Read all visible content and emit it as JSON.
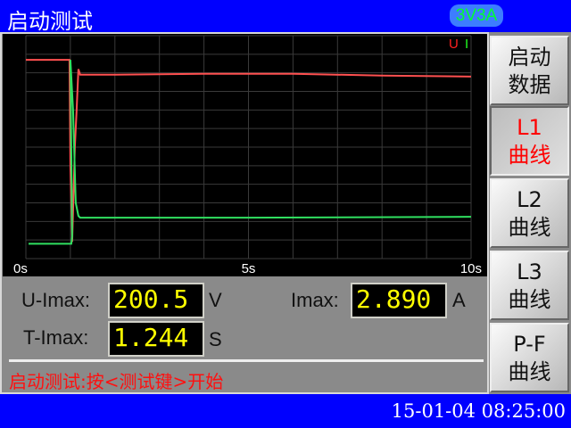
{
  "header": {
    "title": "启动测试",
    "badge": "3V3A"
  },
  "chart_data": {
    "type": "line",
    "x_ticks": [
      "0s",
      "5s",
      "10s"
    ],
    "xlim": [
      0,
      10
    ],
    "ylim": [
      0,
      12
    ],
    "grid": true,
    "legend": [
      {
        "name": "U",
        "color": "#ff2020"
      },
      {
        "name": "I",
        "color": "#20ff20"
      }
    ],
    "series": [
      {
        "name": "U",
        "color": "#ff5050",
        "points": [
          [
            0,
            10.7
          ],
          [
            0.98,
            10.7
          ],
          [
            1.0,
            5
          ],
          [
            1.04,
            0.9
          ],
          [
            1.1,
            6
          ],
          [
            1.14,
            8
          ],
          [
            1.18,
            10.2
          ],
          [
            1.22,
            9.9
          ],
          [
            2,
            9.9
          ],
          [
            4,
            9.95
          ],
          [
            6,
            9.95
          ],
          [
            8,
            9.85
          ],
          [
            10,
            9.8
          ]
        ]
      },
      {
        "name": "I",
        "color": "#30e060",
        "points": [
          [
            0.06,
            0.8
          ],
          [
            1.02,
            0.8
          ],
          [
            1.04,
            1.2
          ],
          [
            1.0,
            10.7
          ],
          [
            1.06,
            8
          ],
          [
            1.12,
            3
          ],
          [
            1.18,
            2.3
          ],
          [
            1.22,
            2.2
          ],
          [
            5,
            2.2
          ],
          [
            10,
            2.25
          ]
        ]
      }
    ]
  },
  "readings": {
    "u_label": "U-Imax:",
    "u_value": "200.5",
    "u_unit": "V",
    "i_label": "Imax:",
    "i_value": "2.890",
    "i_unit": "A",
    "t_label": "T-Imax:",
    "t_value": "1.244",
    "t_unit": "S"
  },
  "status": "启动测试:按<测试键>开始",
  "buttons": [
    {
      "l1": "启动",
      "l2": "数据"
    },
    {
      "l1": "L1",
      "l2": "曲线"
    },
    {
      "l1": "L2",
      "l2": "曲线"
    },
    {
      "l1": "L3",
      "l2": "曲线"
    },
    {
      "l1": "P-F",
      "l2": "曲线"
    }
  ],
  "active_button": 1,
  "footer": {
    "datetime": "15-01-04 08:25:00"
  }
}
